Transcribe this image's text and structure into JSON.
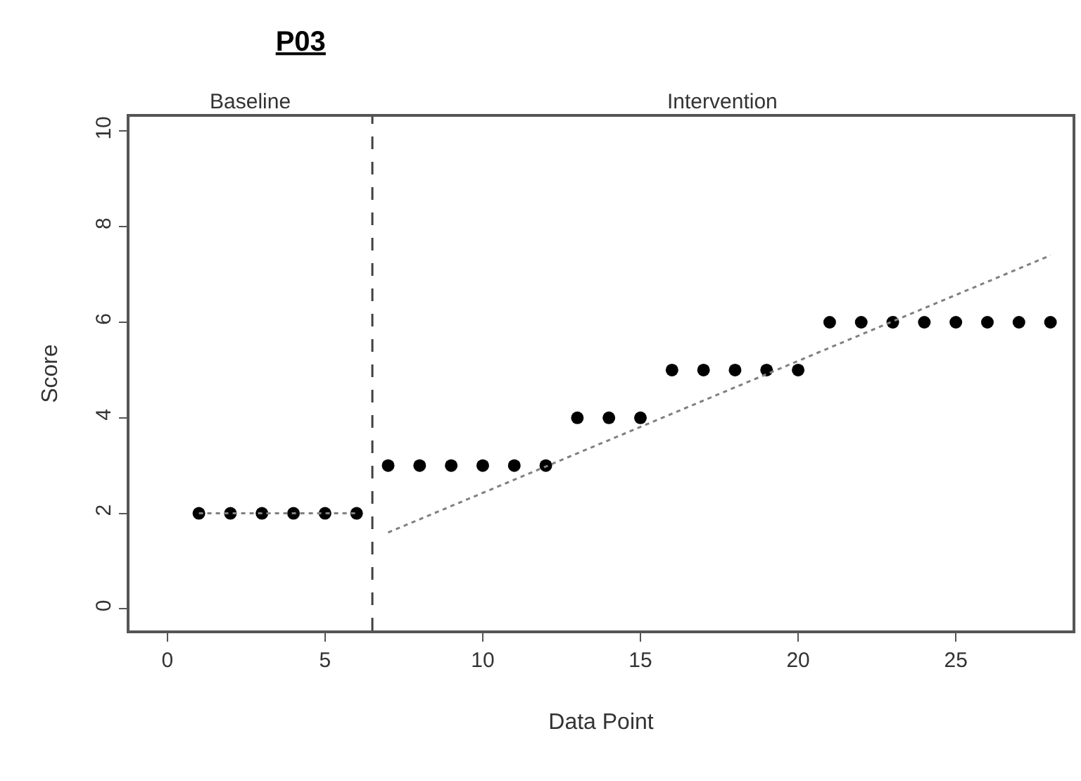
{
  "chart_data": {
    "type": "scatter",
    "title": "P03",
    "xlabel": "Data Point",
    "ylabel": "Score",
    "xlim": [
      -1.2,
      28.7
    ],
    "xticks": [
      0,
      5,
      10,
      15,
      20,
      25
    ],
    "ylim": [
      -0.45,
      10.3
    ],
    "yticks": [
      0,
      2,
      4,
      6,
      8,
      10
    ],
    "marker": "circle",
    "annotations": [
      "Baseline",
      "Intervention"
    ],
    "ref_lines": [
      {
        "axis": "x",
        "value": 6.5,
        "color": "#404040",
        "line_style": "dashed"
      }
    ],
    "series": [
      {
        "color": "#000000",
        "x": [
          1,
          2,
          3,
          4,
          5,
          6,
          7,
          8,
          9,
          10,
          11,
          12,
          13,
          14,
          15,
          16,
          17,
          18,
          19,
          20,
          21,
          22,
          23,
          24,
          25,
          26,
          27,
          28
        ],
        "values": [
          2,
          2,
          2,
          2,
          2,
          2,
          3,
          3,
          3,
          3,
          3,
          3,
          4,
          4,
          4,
          5,
          5,
          5,
          5,
          5,
          6,
          6,
          6,
          6,
          6,
          6,
          6,
          6
        ]
      },
      {
        "type": "line",
        "color": "#808080",
        "line_style": "dotted",
        "marker": "none",
        "x": [
          1,
          6
        ],
        "values": [
          2,
          2
        ]
      },
      {
        "type": "line",
        "color": "#808080",
        "line_style": "dotted",
        "marker": "none",
        "x": [
          7,
          28
        ],
        "values": [
          1.6,
          7.4
        ]
      }
    ]
  }
}
